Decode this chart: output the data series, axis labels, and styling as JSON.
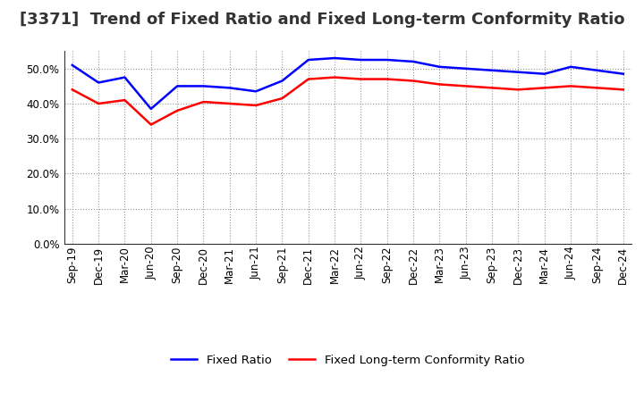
{
  "title": "[3371]  Trend of Fixed Ratio and Fixed Long-term Conformity Ratio",
  "x_labels": [
    "Sep-19",
    "Dec-19",
    "Mar-20",
    "Jun-20",
    "Sep-20",
    "Dec-20",
    "Mar-21",
    "Jun-21",
    "Sep-21",
    "Dec-21",
    "Mar-22",
    "Jun-22",
    "Sep-22",
    "Dec-22",
    "Mar-23",
    "Jun-23",
    "Sep-23",
    "Dec-23",
    "Mar-24",
    "Jun-24",
    "Sep-24",
    "Dec-24"
  ],
  "fixed_ratio": [
    51.0,
    46.0,
    47.5,
    38.5,
    45.0,
    45.0,
    44.5,
    43.5,
    46.5,
    52.5,
    53.0,
    52.5,
    52.5,
    52.0,
    50.5,
    50.0,
    49.5,
    49.0,
    48.5,
    50.5,
    49.5,
    48.5
  ],
  "fixed_lt_ratio": [
    44.0,
    40.0,
    41.0,
    34.0,
    38.0,
    40.5,
    40.0,
    39.5,
    41.5,
    47.0,
    47.5,
    47.0,
    47.0,
    46.5,
    45.5,
    45.0,
    44.5,
    44.0,
    44.5,
    45.0,
    44.5,
    44.0
  ],
  "ylim": [
    0,
    55
  ],
  "yticks": [
    0,
    10,
    20,
    30,
    40,
    50
  ],
  "line_color_fixed": "#0000FF",
  "line_color_lt": "#FF0000",
  "background_color": "#FFFFFF",
  "plot_bg_color": "#FFFFFF",
  "grid_color": "#AAAAAA",
  "legend_fixed": "Fixed Ratio",
  "legend_lt": "Fixed Long-term Conformity Ratio",
  "title_fontsize": 13,
  "tick_fontsize": 8.5,
  "legend_fontsize": 9.5
}
